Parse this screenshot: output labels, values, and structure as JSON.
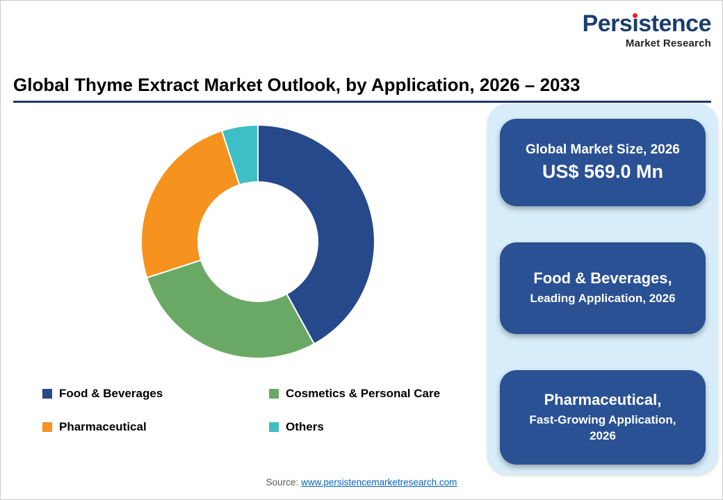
{
  "logo": {
    "name": "Persistence",
    "name_pre": "Pers",
    "name_dotless_i": "ı",
    "name_post": "stence",
    "tagline": "Market Research"
  },
  "header": {
    "title": "Global Thyme Extract Market Outlook, by Application, 2026 – 2033"
  },
  "chart_data": {
    "type": "pie",
    "subtype": "donut",
    "title": "Global Thyme Extract Market Outlook, by Application, 2026 – 2033",
    "start_angle_deg": 0,
    "direction": "clockwise",
    "inner_radius_ratio": 0.51,
    "segments": [
      {
        "label": "Food & Beverages",
        "value": 42,
        "color": "#26498b"
      },
      {
        "label": "Cosmetics & Personal Care",
        "value": 28,
        "color": "#69a965"
      },
      {
        "label": "Pharmaceutical",
        "value": 25,
        "color": "#f6921e"
      },
      {
        "label": "Others",
        "value": 5,
        "color": "#3ebfc6"
      }
    ],
    "legend_position": "bottom"
  },
  "highlights": {
    "cards": [
      {
        "line1": "Global Market Size, 2026",
        "line2": "US$ 569.0 Mn"
      },
      {
        "line1": "Food & Beverages,",
        "line2": "Leading Application, 2026"
      },
      {
        "line1": "Pharmaceutical,",
        "line2": "Fast-Growing Application, 2026"
      }
    ]
  },
  "footer": {
    "source_label": "Source:",
    "source_link": "www.persistencemarketresearch.com"
  },
  "colors": {
    "logo_navy": "#1b3e6f",
    "logo_red_dot": "#e0262b",
    "title_rule_navy": "#1f3864",
    "panel_light_blue": "#d7edf9",
    "card_blue": "#2a5193",
    "link_blue": "#0563c1",
    "source_gray": "#595959"
  }
}
